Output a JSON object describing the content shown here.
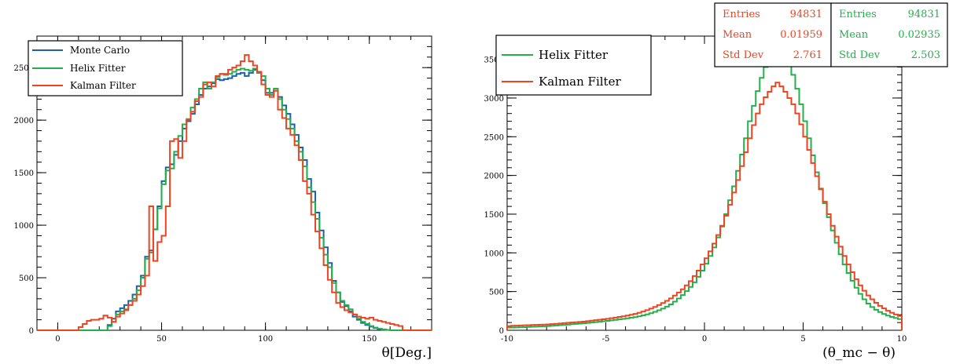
{
  "chart_data": [
    {
      "type": "histogram",
      "xlabel": "θ[Deg.]",
      "ylabel": "",
      "xlim": [
        -10,
        180
      ],
      "ylim": [
        0,
        2800
      ],
      "xticks": [
        0,
        50,
        100,
        150
      ],
      "yticks": [
        0,
        500,
        1000,
        1500,
        2000,
        2500
      ],
      "bin_width": 2,
      "legend": {
        "placement": "top-left",
        "entries": [
          {
            "name": "Monte Carlo",
            "color": "#1f5fa5"
          },
          {
            "name": "Helix Fitter",
            "color": "#22b04b"
          },
          {
            "name": "Kalman Filter",
            "color": "#ee4422"
          }
        ]
      },
      "series": [
        {
          "name": "Monte Carlo",
          "color": "#1f5fa5",
          "x": [
            24,
            26,
            28,
            30,
            32,
            34,
            36,
            38,
            40,
            42,
            44,
            46,
            48,
            50,
            52,
            54,
            56,
            58,
            60,
            62,
            64,
            66,
            68,
            70,
            72,
            74,
            76,
            78,
            80,
            82,
            84,
            86,
            88,
            90,
            92,
            94,
            96,
            98,
            100,
            102,
            104,
            106,
            108,
            110,
            112,
            114,
            116,
            118,
            120,
            122,
            124,
            126,
            128,
            130,
            132,
            134,
            136,
            138,
            140,
            142,
            144,
            146,
            148,
            150,
            152,
            154,
            156,
            158
          ],
          "values": [
            50,
            110,
            180,
            210,
            240,
            280,
            340,
            420,
            520,
            700,
            760,
            960,
            1180,
            1420,
            1550,
            1580,
            1670,
            1800,
            1920,
            1990,
            2060,
            2150,
            2240,
            2300,
            2320,
            2350,
            2390,
            2380,
            2390,
            2400,
            2420,
            2440,
            2450,
            2420,
            2450,
            2480,
            2450,
            2380,
            2260,
            2260,
            2280,
            2220,
            2140,
            2060,
            1960,
            1860,
            1740,
            1620,
            1440,
            1320,
            1120,
            950,
            790,
            640,
            470,
            360,
            270,
            230,
            180,
            130,
            100,
            70,
            50,
            35,
            22,
            12,
            6,
            3
          ]
        },
        {
          "name": "Helix Fitter",
          "color": "#22b04b",
          "x": [
            24,
            26,
            28,
            30,
            32,
            34,
            36,
            38,
            40,
            42,
            44,
            46,
            48,
            50,
            52,
            54,
            56,
            58,
            60,
            62,
            64,
            66,
            68,
            70,
            72,
            74,
            76,
            78,
            80,
            82,
            84,
            86,
            88,
            90,
            92,
            94,
            96,
            98,
            100,
            102,
            104,
            106,
            108,
            110,
            112,
            114,
            116,
            118,
            120,
            122,
            124,
            126,
            128,
            130,
            132,
            134,
            136,
            138,
            140,
            142,
            144,
            146,
            148,
            150,
            152,
            154,
            156,
            158
          ],
          "values": [
            40,
            80,
            150,
            180,
            200,
            240,
            300,
            380,
            500,
            680,
            740,
            960,
            1160,
            1390,
            1520,
            1540,
            1700,
            1850,
            1960,
            2010,
            2120,
            2200,
            2300,
            2360,
            2300,
            2360,
            2410,
            2440,
            2430,
            2440,
            2460,
            2480,
            2490,
            2480,
            2470,
            2490,
            2450,
            2420,
            2300,
            2240,
            2300,
            2200,
            2100,
            2010,
            1920,
            1800,
            1700,
            1560,
            1360,
            1220,
            1060,
            880,
            720,
            600,
            450,
            360,
            280,
            240,
            200,
            150,
            110,
            80,
            60,
            40,
            25,
            14,
            8,
            4
          ]
        },
        {
          "name": "Kalman Filter",
          "color": "#ee4422",
          "x": [
            10,
            12,
            14,
            16,
            18,
            20,
            22,
            24,
            26,
            28,
            30,
            32,
            34,
            36,
            38,
            40,
            42,
            44,
            46,
            48,
            50,
            52,
            54,
            56,
            58,
            60,
            62,
            64,
            66,
            68,
            70,
            72,
            74,
            76,
            78,
            80,
            82,
            84,
            86,
            88,
            90,
            92,
            94,
            96,
            98,
            100,
            102,
            104,
            106,
            108,
            110,
            112,
            114,
            116,
            118,
            120,
            122,
            124,
            126,
            128,
            130,
            132,
            134,
            136,
            138,
            140,
            142,
            144,
            146,
            148,
            150,
            152,
            154,
            156,
            158,
            160,
            162,
            164
          ],
          "values": [
            30,
            60,
            90,
            100,
            100,
            110,
            140,
            120,
            80,
            130,
            160,
            190,
            240,
            280,
            340,
            420,
            520,
            1180,
            660,
            840,
            900,
            1180,
            1800,
            1820,
            1640,
            1800,
            2000,
            2080,
            2180,
            2220,
            2340,
            2360,
            2320,
            2420,
            2440,
            2440,
            2480,
            2500,
            2520,
            2560,
            2620,
            2560,
            2520,
            2460,
            2340,
            2240,
            2220,
            2280,
            2100,
            2020,
            1920,
            1860,
            1760,
            1620,
            1420,
            1300,
            1100,
            940,
            780,
            620,
            480,
            360,
            260,
            220,
            190,
            170,
            150,
            130,
            120,
            110,
            120,
            100,
            90,
            80,
            70,
            60,
            50,
            40
          ]
        }
      ]
    },
    {
      "type": "histogram",
      "xlabel": "(θ_mc − θ)",
      "ylabel": "",
      "xlim": [
        -10,
        10
      ],
      "ylim": [
        0,
        3800
      ],
      "xticks": [
        -10,
        -5,
        0,
        5,
        10
      ],
      "yticks": [
        0,
        500,
        1000,
        1500,
        2000,
        2500,
        3000,
        3500
      ],
      "bin_width": 0.2,
      "legend": {
        "placement": "top-left",
        "entries": [
          {
            "name": "Helix Fitter",
            "color": "#22b04b"
          },
          {
            "name": "Kalman Filter",
            "color": "#ee4422"
          }
        ]
      },
      "stats_boxes": [
        {
          "color": "#ee4422",
          "rows": [
            {
              "label": "Entries",
              "value": "94831"
            },
            {
              "label": "Mean",
              "value": "0.01959"
            },
            {
              "label": "Std Dev",
              "value": "2.761"
            }
          ]
        },
        {
          "color": "#22b04b",
          "rows": [
            {
              "label": "Entries",
              "value": "94831"
            },
            {
              "label": "Mean",
              "value": "0.02935"
            },
            {
              "label": "Std Dev",
              "value": "2.503"
            }
          ]
        }
      ],
      "series": [
        {
          "name": "Helix Fitter",
          "color": "#22b04b",
          "x_start": -10,
          "values": [
            35,
            36,
            37,
            39,
            41,
            43,
            45,
            47,
            49,
            52,
            55,
            58,
            62,
            66,
            70,
            74,
            78,
            82,
            86,
            90,
            95,
            100,
            105,
            110,
            116,
            122,
            128,
            134,
            140,
            147,
            154,
            162,
            170,
            180,
            192,
            205,
            220,
            238,
            258,
            280,
            305,
            335,
            370,
            410,
            455,
            505,
            560,
            620,
            690,
            770,
            860,
            960,
            1070,
            1200,
            1340,
            1500,
            1680,
            1860,
            2060,
            2270,
            2480,
            2700,
            2900,
            3090,
            3260,
            3400,
            3520,
            3600,
            3620,
            3540,
            3480,
            3420,
            3300,
            3120,
            2920,
            2700,
            2480,
            2260,
            2040,
            1830,
            1640,
            1460,
            1290,
            1130,
            980,
            850,
            740,
            640,
            550,
            470,
            400,
            345,
            300,
            265,
            235,
            210,
            190,
            172,
            158,
            145,
            133,
            122,
            112,
            104,
            96,
            89,
            82,
            76,
            70,
            65,
            60,
            56,
            52,
            48,
            45,
            42,
            39,
            37,
            35,
            33,
            31,
            30,
            29,
            28,
            27,
            26,
            25,
            24,
            23,
            22,
            21
          ]
        },
        {
          "name": "Kalman Filter",
          "color": "#ee4422",
          "x_start": -10,
          "values": [
            55,
            58,
            60,
            62,
            64,
            66,
            68,
            70,
            72,
            74,
            76,
            80,
            84,
            88,
            92,
            96,
            100,
            104,
            108,
            112,
            118,
            124,
            130,
            136,
            142,
            148,
            156,
            164,
            172,
            180,
            190,
            200,
            212,
            226,
            242,
            260,
            280,
            302,
            326,
            352,
            380,
            412,
            448,
            488,
            530,
            580,
            635,
            700,
            770,
            850,
            930,
            1020,
            1120,
            1230,
            1350,
            1480,
            1620,
            1780,
            1940,
            2120,
            2300,
            2480,
            2650,
            2800,
            2920,
            3010,
            3080,
            3150,
            3200,
            3150,
            3080,
            3000,
            2920,
            2800,
            2660,
            2500,
            2330,
            2160,
            1990,
            1820,
            1660,
            1500,
            1350,
            1210,
            1080,
            960,
            850,
            750,
            660,
            580,
            510,
            450,
            400,
            355,
            315,
            282,
            252,
            226,
            204,
            185,
            168,
            153,
            140,
            128,
            118,
            109,
            101,
            94,
            88,
            82,
            77,
            72,
            68,
            64,
            60,
            57,
            54,
            51,
            49,
            47,
            45,
            43,
            41,
            40,
            38,
            37,
            36,
            35,
            34,
            33
          ]
        }
      ]
    }
  ]
}
